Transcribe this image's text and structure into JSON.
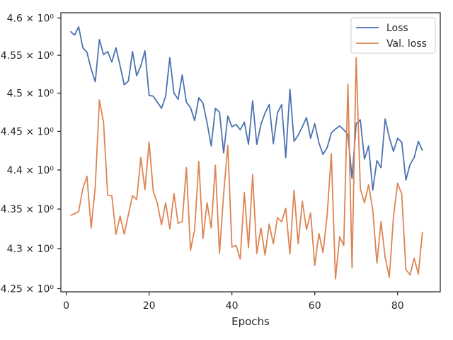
{
  "chart_data": {
    "type": "line",
    "title": "",
    "xlabel": "Epochs",
    "ylabel": "",
    "yscale": "log",
    "grid": false,
    "legend_position": "top-right",
    "xlim": [
      -1.3,
      90.3
    ],
    "ylim": [
      4.246,
      4.607
    ],
    "x_ticks": [
      0,
      20,
      40,
      60,
      80
    ],
    "x_tick_labels": [
      "0",
      "20",
      "40",
      "60",
      "80"
    ],
    "y_ticks": [
      4.25,
      4.3,
      4.35,
      4.4,
      4.45,
      4.5,
      4.55,
      4.6
    ],
    "y_tick_labels": [
      "4.25 × 10⁰",
      "4.3 × 10⁰",
      "4.35 × 10⁰",
      "4.4 × 10⁰",
      "4.45 × 10⁰",
      "4.5 × 10⁰",
      "4.55 × 10⁰",
      "4.6 × 10⁰"
    ],
    "x": [
      1,
      2,
      3,
      4,
      5,
      6,
      7,
      8,
      9,
      10,
      11,
      12,
      13,
      14,
      15,
      16,
      17,
      18,
      19,
      20,
      21,
      22,
      23,
      24,
      25,
      26,
      27,
      28,
      29,
      30,
      31,
      32,
      33,
      34,
      35,
      36,
      37,
      38,
      39,
      40,
      41,
      42,
      43,
      44,
      45,
      46,
      47,
      48,
      49,
      50,
      51,
      52,
      53,
      54,
      55,
      56,
      57,
      58,
      59,
      60,
      61,
      62,
      63,
      64,
      65,
      66,
      67,
      68,
      69,
      70,
      71,
      72,
      73,
      74,
      75,
      76,
      77,
      78,
      79,
      80,
      81,
      82,
      83,
      84,
      85,
      86
    ],
    "series": [
      {
        "name": "Loss",
        "color": "#4c72b0",
        "values": [
          4.582,
          4.577,
          4.588,
          4.56,
          4.554,
          4.532,
          4.515,
          4.571,
          4.551,
          4.555,
          4.541,
          4.56,
          4.536,
          4.511,
          4.516,
          4.555,
          4.523,
          4.536,
          4.556,
          4.497,
          4.496,
          4.488,
          4.48,
          4.496,
          4.547,
          4.5,
          4.492,
          4.524,
          4.488,
          4.481,
          4.464,
          4.494,
          4.487,
          4.461,
          4.431,
          4.48,
          4.475,
          4.422,
          4.47,
          4.456,
          4.459,
          4.452,
          4.462,
          4.433,
          4.49,
          4.433,
          4.459,
          4.474,
          4.485,
          4.434,
          4.474,
          4.485,
          4.416,
          4.505,
          4.437,
          4.445,
          4.456,
          4.468,
          4.441,
          4.46,
          4.435,
          4.42,
          4.429,
          4.448,
          4.453,
          4.457,
          4.452,
          4.446,
          4.389,
          4.46,
          4.465,
          4.414,
          4.431,
          4.374,
          4.412,
          4.403,
          4.466,
          4.442,
          4.424,
          4.441,
          4.436,
          4.387,
          4.407,
          4.416,
          4.437,
          4.425
        ]
      },
      {
        "name": "Val. loss",
        "color": "#dd8452",
        "values": [
          4.342,
          4.344,
          4.347,
          4.376,
          4.392,
          4.326,
          4.378,
          4.491,
          4.462,
          4.368,
          4.367,
          4.318,
          4.341,
          4.318,
          4.343,
          4.367,
          4.362,
          4.416,
          4.375,
          4.436,
          4.373,
          4.357,
          4.33,
          4.358,
          4.325,
          4.37,
          4.332,
          4.334,
          4.403,
          4.298,
          4.324,
          4.411,
          4.313,
          4.358,
          4.326,
          4.406,
          4.294,
          4.369,
          4.432,
          4.302,
          4.304,
          4.287,
          4.371,
          4.301,
          4.394,
          4.294,
          4.326,
          4.292,
          4.331,
          4.306,
          4.339,
          4.334,
          4.351,
          4.293,
          4.374,
          4.306,
          4.36,
          4.324,
          4.345,
          4.279,
          4.319,
          4.295,
          4.343,
          4.421,
          4.262,
          4.315,
          4.304,
          4.512,
          4.276,
          4.547,
          4.376,
          4.358,
          4.381,
          4.349,
          4.282,
          4.334,
          4.289,
          4.264,
          4.34,
          4.383,
          4.369,
          4.274,
          4.267,
          4.288,
          4.268,
          4.321
        ]
      }
    ]
  }
}
